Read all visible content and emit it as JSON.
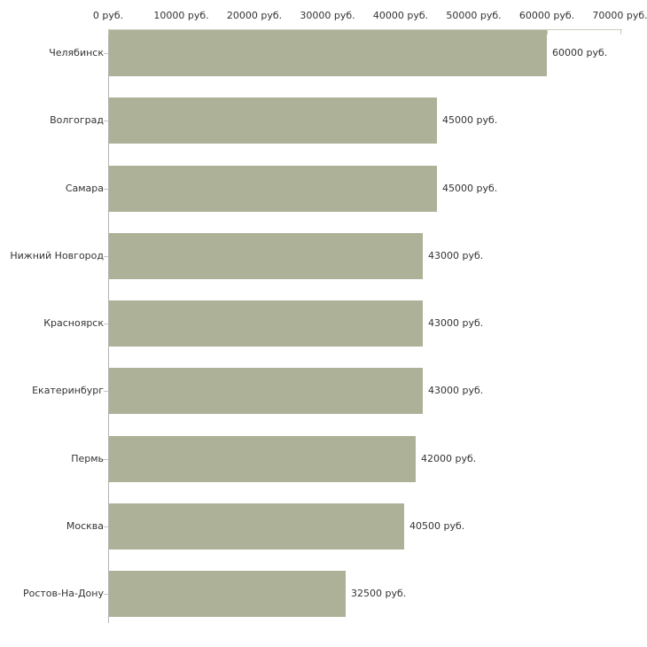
{
  "chart_data": {
    "type": "bar",
    "orientation": "horizontal",
    "title": "",
    "unit": "руб.",
    "categories": [
      "Челябинск",
      "Волгоград",
      "Самара",
      "Нижний Новгород",
      "Красноярск",
      "Екатеринбург",
      "Пермь",
      "Москва",
      "Ростов-На-Дону"
    ],
    "values": [
      60000,
      45000,
      45000,
      43000,
      43000,
      43000,
      42000,
      40500,
      32500
    ],
    "value_labels": [
      "60000 руб.",
      "45000 руб.",
      "45000 руб.",
      "43000 руб.",
      "43000 руб.",
      "43000 руб.",
      "42000 руб.",
      "40500 руб.",
      "32500 руб."
    ],
    "x_axis": {
      "position": "top",
      "range": [
        0,
        70000
      ],
      "ticks": [
        0,
        10000,
        20000,
        30000,
        40000,
        50000,
        60000,
        70000
      ],
      "tick_labels": [
        "0 руб.",
        "10000 руб.",
        "20000 руб.",
        "30000 руб.",
        "40000 руб.",
        "50000 руб.",
        "60000 руб.",
        "70000 руб."
      ]
    },
    "grid": "off",
    "legend": "none",
    "colors": {
      "bar": "#acb198",
      "y_axis_line": "#b3b3b3",
      "x_axis_line": "#c9cdbb",
      "tick": "#c4c8b4",
      "text": "#333333",
      "background": "#ffffff"
    }
  }
}
